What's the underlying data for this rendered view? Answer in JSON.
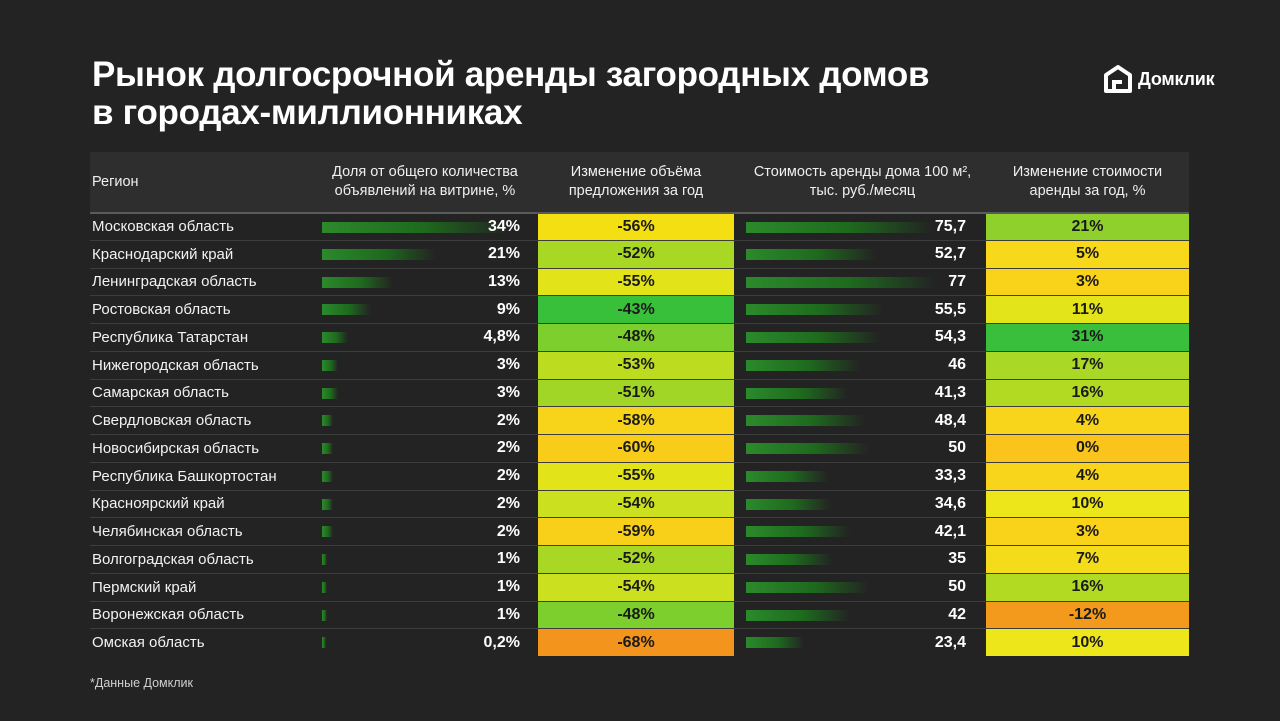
{
  "title_line1": "Рынок долгосрочной аренды загородных домов",
  "title_line2": "в городах-миллионниках",
  "logo_text": "Домклик",
  "footnote": "*Данные Домклик",
  "headers": {
    "region": "Регион",
    "share": "Доля от общего количества объявлений на витрине, %",
    "supply_change": "Изменение объёма предложения за год",
    "rent": "Стоимость аренды дома 100 м², тыс. руб./месяц",
    "rent_change": "Изменение стоимости аренды за год, %"
  },
  "chart_data": {
    "type": "table",
    "title": "Рынок долгосрочной аренды загородных домов в городах-миллионниках",
    "columns": [
      "Регион",
      "Доля от общего количества объявлений на витрине, %",
      "Изменение объёма предложения за год",
      "Стоимость аренды дома 100 м², тыс. руб./месяц",
      "Изменение стоимости аренды за год, %"
    ],
    "rows": [
      {
        "region": "Московская область",
        "share": "34%",
        "share_value": 34,
        "supply_change": "-56%",
        "supply_value": -56,
        "supply_color": "#f4df12",
        "rent": "75,7",
        "rent_value": 75.7,
        "rent_change": "21%",
        "rent_change_value": 21,
        "rent_change_color": "#8fd02c"
      },
      {
        "region": "Краснодарский край",
        "share": "21%",
        "share_value": 21,
        "supply_change": "-52%",
        "supply_value": -52,
        "supply_color": "#a8d724",
        "rent": "52,7",
        "rent_value": 52.7,
        "rent_change": "5%",
        "rent_change_value": 5,
        "rent_change_color": "#f7d81a"
      },
      {
        "region": "Ленинградская область",
        "share": "13%",
        "share_value": 13,
        "supply_change": "-55%",
        "supply_value": -55,
        "supply_color": "#e3e31a",
        "rent": "77",
        "rent_value": 77,
        "rent_change": "3%",
        "rent_change_value": 3,
        "rent_change_color": "#f9d31a"
      },
      {
        "region": "Ростовская область",
        "share": "9%",
        "share_value": 9,
        "supply_change": "-43%",
        "supply_value": -43,
        "supply_color": "#39c03a",
        "rent": "55,5",
        "rent_value": 55.5,
        "rent_change": "11%",
        "rent_change_value": 11,
        "rent_change_color": "#e4e41a"
      },
      {
        "region": "Республика Татарстан",
        "share": "4,8%",
        "share_value": 4.8,
        "supply_change": "-48%",
        "supply_value": -48,
        "supply_color": "#7ccf2c",
        "rent": "54,3",
        "rent_value": 54.3,
        "rent_change": "31%",
        "rent_change_value": 31,
        "rent_change_color": "#3abf3c"
      },
      {
        "region": "Нижегородская область",
        "share": "3%",
        "share_value": 3,
        "supply_change": "-53%",
        "supply_value": -53,
        "supply_color": "#bcdc20",
        "rent": "46",
        "rent_value": 46,
        "rent_change": "17%",
        "rent_change_value": 17,
        "rent_change_color": "#a9d826"
      },
      {
        "region": "Самарская область",
        "share": "3%",
        "share_value": 3,
        "supply_change": "-51%",
        "supply_value": -51,
        "supply_color": "#a2d626",
        "rent": "41,3",
        "rent_value": 41.3,
        "rent_change": "16%",
        "rent_change_value": 16,
        "rent_change_color": "#b2da22"
      },
      {
        "region": "Свердловская область",
        "share": "2%",
        "share_value": 2,
        "supply_change": "-58%",
        "supply_value": -58,
        "supply_color": "#f7d41a",
        "rent": "48,4",
        "rent_value": 48.4,
        "rent_change": "4%",
        "rent_change_value": 4,
        "rent_change_color": "#f8d41a"
      },
      {
        "region": "Новосибирская область",
        "share": "2%",
        "share_value": 2,
        "supply_change": "-60%",
        "supply_value": -60,
        "supply_color": "#f9cc1a",
        "rent": "50",
        "rent_value": 50,
        "rent_change": "0%",
        "rent_change_value": 0,
        "rent_change_color": "#fac41c"
      },
      {
        "region": "Республика Башкортостан",
        "share": "2%",
        "share_value": 2,
        "supply_change": "-55%",
        "supply_value": -55,
        "supply_color": "#e3e31a",
        "rent": "33,3",
        "rent_value": 33.3,
        "rent_change": "4%",
        "rent_change_value": 4,
        "rent_change_color": "#f8d41a"
      },
      {
        "region": "Красноярский край",
        "share": "2%",
        "share_value": 2,
        "supply_change": "-54%",
        "supply_value": -54,
        "supply_color": "#cbe01e",
        "rent": "34,6",
        "rent_value": 34.6,
        "rent_change": "10%",
        "rent_change_value": 10,
        "rent_change_color": "#ece61a"
      },
      {
        "region": "Челябинская область",
        "share": "2%",
        "share_value": 2,
        "supply_change": "-59%",
        "supply_value": -59,
        "supply_color": "#f8d01a",
        "rent": "42,1",
        "rent_value": 42.1,
        "rent_change": "3%",
        "rent_change_value": 3,
        "rent_change_color": "#f9d31a"
      },
      {
        "region": "Волгоградская область",
        "share": "1%",
        "share_value": 1,
        "supply_change": "-52%",
        "supply_value": -52,
        "supply_color": "#a8d724",
        "rent": "35",
        "rent_value": 35,
        "rent_change": "7%",
        "rent_change_value": 7,
        "rent_change_color": "#f4dc1a"
      },
      {
        "region": "Пермский край",
        "share": "1%",
        "share_value": 1,
        "supply_change": "-54%",
        "supply_value": -54,
        "supply_color": "#cbe01e",
        "rent": "50",
        "rent_value": 50,
        "rent_change": "16%",
        "rent_change_value": 16,
        "rent_change_color": "#b2da22"
      },
      {
        "region": "Воронежская область",
        "share": "1%",
        "share_value": 1,
        "supply_change": "-48%",
        "supply_value": -48,
        "supply_color": "#7ccf2c",
        "rent": "42",
        "rent_value": 42,
        "rent_change": "-12%",
        "rent_change_value": -12,
        "rent_change_color": "#f39a1c"
      },
      {
        "region": "Омская область",
        "share": "0,2%",
        "share_value": 0.2,
        "supply_change": "-68%",
        "supply_value": -68,
        "supply_color": "#f3951c",
        "rent": "23,4",
        "rent_value": 23.4,
        "rent_change": "10%",
        "rent_change_value": 10,
        "rent_change_color": "#ece61a"
      }
    ]
  }
}
